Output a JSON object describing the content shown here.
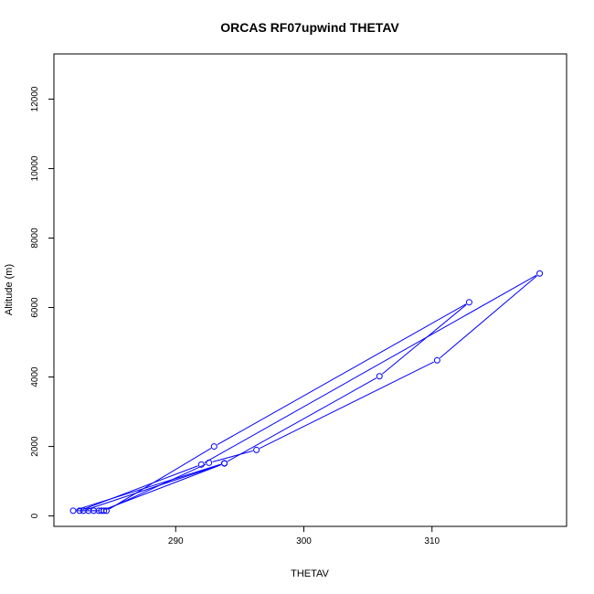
{
  "chart_data": {
    "type": "line",
    "title": "ORCAS RF07upwind THETAV",
    "xlabel": "THETAV",
    "ylabel": "Altitude (m)",
    "xlim": [
      280.5,
      320.5
    ],
    "ylim": [
      -300,
      13300
    ],
    "xticks": [
      290,
      300,
      310
    ],
    "yticks": [
      0,
      2000,
      4000,
      6000,
      8000,
      10000,
      12000
    ],
    "grid": false,
    "legend": "none",
    "series_color": "#0000ff",
    "marker": "open-circle",
    "series": [
      {
        "points": [
          [
            284.6,
            150
          ],
          [
            293.0,
            2000
          ],
          [
            312.9,
            6150
          ],
          [
            305.9,
            4020
          ],
          [
            293.8,
            1520
          ],
          [
            282.0,
            150
          ],
          [
            283.2,
            150
          ],
          [
            284.4,
            150
          ],
          [
            292.6,
            1530
          ],
          [
            296.3,
            1900
          ],
          [
            310.4,
            4480
          ],
          [
            318.4,
            6980
          ],
          [
            292.0,
            1480
          ],
          [
            282.5,
            150
          ],
          [
            283.6,
            150
          ],
          [
            284.2,
            150
          ],
          [
            293.8,
            1510
          ],
          [
            282.8,
            150
          ],
          [
            284.0,
            150
          ]
        ]
      }
    ]
  }
}
